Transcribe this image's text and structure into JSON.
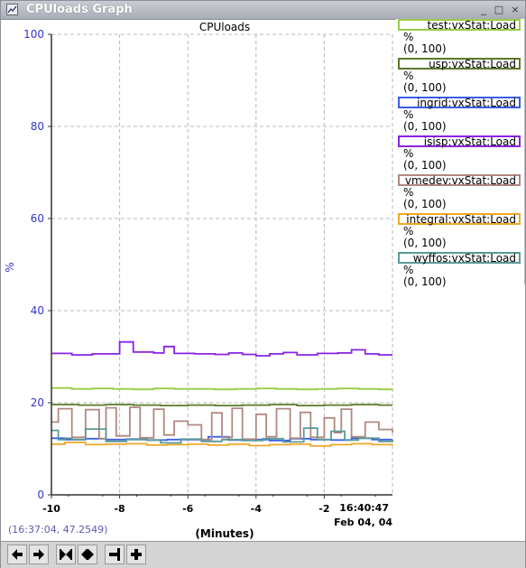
{
  "window": {
    "title": "CPUloads Graph"
  },
  "chart_data": {
    "type": "line",
    "title": "CPUloads",
    "xlabel": "(Minutes)",
    "ylabel": "%",
    "xlim": [
      -10,
      0
    ],
    "ylim": [
      0,
      100
    ],
    "x_ticks": [
      -10,
      -8,
      -6,
      -4,
      -2
    ],
    "y_ticks": [
      0,
      20,
      40,
      60,
      80,
      100
    ],
    "end_time_label": "16:40:47",
    "end_date_label": "Feb 04, 04",
    "grid": true,
    "series": [
      {
        "name": "test:vxStat:Load",
        "color": "#99cc44",
        "x": [
          -10,
          -9.4,
          -8.8,
          -8.2,
          -7.6,
          -7.0,
          -6.4,
          -5.8,
          -5.2,
          -4.6,
          -4.0,
          -3.4,
          -2.8,
          -2.2,
          -1.6,
          -1.0,
          -0.4,
          0
        ],
        "y": [
          23.2,
          23.0,
          23.1,
          23.0,
          22.9,
          23.1,
          23.0,
          23.0,
          22.9,
          23.0,
          23.1,
          23.0,
          22.9,
          23.0,
          23.1,
          23.0,
          22.9,
          23.0
        ]
      },
      {
        "name": "usp:vxStat:Load",
        "color": "#5a7a28",
        "x": [
          -10,
          -9.2,
          -8.4,
          -7.6,
          -6.8,
          -6.0,
          -5.2,
          -4.4,
          -3.6,
          -2.8,
          -2.0,
          -1.2,
          -0.4,
          0
        ],
        "y": [
          19.6,
          19.5,
          19.6,
          19.5,
          19.4,
          19.5,
          19.4,
          19.5,
          19.6,
          19.4,
          19.5,
          19.6,
          19.5,
          19.5
        ]
      },
      {
        "name": "ingrid:vxStat:Load",
        "color": "#3a5ee6",
        "x": [
          -10,
          -9.6,
          -9.0,
          -8.4,
          -7.8,
          -7.2,
          -6.6,
          -6.0,
          -5.4,
          -4.8,
          -4.2,
          -3.6,
          -3.0,
          -2.4,
          -1.8,
          -1.2,
          -0.6,
          0
        ],
        "y": [
          12.3,
          12.0,
          12.2,
          12.0,
          12.1,
          11.9,
          12.0,
          12.0,
          12.6,
          11.9,
          12.0,
          11.8,
          12.2,
          12.0,
          11.9,
          12.3,
          12.0,
          12.0
        ]
      },
      {
        "name": "isisp:vxStat:Load",
        "color": "#8a22e6",
        "x": [
          -10,
          -9.4,
          -8.8,
          -8.0,
          -7.6,
          -7.0,
          -6.7,
          -6.4,
          -5.8,
          -5.2,
          -4.8,
          -4.4,
          -4.0,
          -3.6,
          -3.2,
          -2.8,
          -2.2,
          -1.6,
          -1.2,
          -0.8,
          -0.4,
          0
        ],
        "y": [
          30.7,
          30.4,
          30.6,
          33.2,
          31.0,
          30.8,
          32.2,
          30.7,
          30.6,
          30.5,
          30.8,
          30.5,
          30.2,
          30.6,
          30.9,
          30.4,
          30.7,
          30.8,
          31.5,
          30.6,
          30.4,
          30.4
        ]
      },
      {
        "name": "vmedev:vxStat:Load",
        "color": "#b08880",
        "x": [
          -10,
          -9.8,
          -9.4,
          -9.0,
          -8.6,
          -8.4,
          -8.1,
          -7.7,
          -7.4,
          -7.0,
          -6.7,
          -6.4,
          -6.0,
          -5.6,
          -5.3,
          -5.0,
          -4.7,
          -4.4,
          -4.0,
          -3.7,
          -3.4,
          -3.0,
          -2.7,
          -2.4,
          -2.0,
          -1.7,
          -1.5,
          -1.2,
          -0.8,
          -0.4,
          0
        ],
        "y": [
          15.8,
          18.7,
          12.5,
          18.5,
          12.2,
          18.9,
          12.8,
          19.0,
          12.4,
          18.6,
          13.0,
          16.0,
          15.2,
          12.0,
          17.8,
          12.5,
          18.8,
          12.1,
          17.5,
          12.6,
          18.7,
          12.3,
          17.9,
          12.5,
          16.7,
          13.5,
          18.6,
          12.6,
          15.8,
          14.2,
          13.5
        ]
      },
      {
        "name": "integral:vxStat:Load",
        "color": "#f0a828",
        "x": [
          -10,
          -9.6,
          -9.0,
          -8.4,
          -7.8,
          -7.2,
          -6.6,
          -6.0,
          -5.4,
          -4.8,
          -4.2,
          -3.6,
          -3.0,
          -2.4,
          -1.8,
          -1.2,
          -0.6,
          0
        ],
        "y": [
          11.0,
          11.4,
          10.9,
          11.0,
          11.1,
          10.8,
          10.9,
          11.0,
          10.8,
          11.0,
          10.7,
          10.9,
          11.0,
          10.6,
          10.9,
          11.1,
          10.9,
          11.0
        ]
      },
      {
        "name": "wyffos:vxStat:Load",
        "color": "#5a9a98",
        "x": [
          -10,
          -9.8,
          -9.6,
          -9.4,
          -9.0,
          -8.4,
          -7.8,
          -7.2,
          -6.8,
          -6.2,
          -5.6,
          -5.0,
          -4.4,
          -3.8,
          -3.2,
          -2.6,
          -2.2,
          -1.8,
          -1.4,
          -1.0,
          -0.4,
          0
        ],
        "y": [
          14.0,
          12.0,
          12.3,
          12.0,
          14.3,
          11.6,
          12.0,
          11.9,
          11.3,
          12.1,
          11.6,
          12.0,
          11.8,
          12.2,
          11.5,
          14.5,
          12.0,
          13.8,
          11.9,
          12.3,
          11.6,
          12.0
        ]
      }
    ]
  },
  "legend": {
    "unit": "%",
    "range": "(0, 100)"
  },
  "status": {
    "cursor_readout": "(16:37:04, 47.2549)"
  },
  "toolbar": {
    "buttons": [
      "scroll-left-icon",
      "scroll-right-icon",
      "zoom-in-horizontal-icon",
      "zoom-out-horizontal-icon",
      "remove-trace-icon",
      "add-trace-icon"
    ]
  }
}
